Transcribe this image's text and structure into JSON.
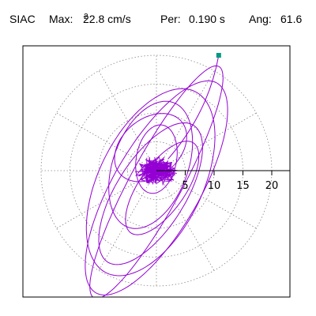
{
  "header": {
    "station": "SIAC",
    "max_label": "Max:",
    "max_value": "22.8",
    "max_unit": "cm/s",
    "max_unit_sup": "2",
    "period_label": "Per:",
    "period_value": "0.190 s",
    "angle_label": "Ang:",
    "angle_value": "61.6"
  },
  "chart_data": {
    "type": "line",
    "title": "SIAC  Max: 22.8 cm/s² Per: 0.190 s  Ang: 61.6",
    "x_ticks": [
      "5",
      "10",
      "15",
      "20"
    ],
    "x_tick_values": [
      5,
      10,
      15,
      20
    ],
    "range": [
      -25,
      25
    ],
    "polar_grid_rings": [
      5,
      10,
      15,
      20
    ],
    "polar_grid_spokes_deg": [
      0,
      30,
      60,
      90,
      120,
      150,
      180,
      210,
      240,
      270,
      300,
      330
    ],
    "grid": "dotted polar",
    "trace_color": "#9400d3",
    "marker_color": "#009a82",
    "max_point": {
      "x": 10.8,
      "y": 20.0
    },
    "series": [
      {
        "loops": [
          {
            "a": 22.8,
            "b": 4.5,
            "angle": 61.6,
            "cx": 0,
            "cy": -2
          },
          {
            "a": 21.0,
            "b": 7.5,
            "angle": 60.0,
            "cx": 0,
            "cy": -3
          },
          {
            "a": 17.5,
            "b": 9.0,
            "angle": 64.0,
            "cx": -1,
            "cy": -2
          },
          {
            "a": 14.0,
            "b": 6.0,
            "angle": 58.0,
            "cx": -1,
            "cy": -4
          },
          {
            "a": 11.5,
            "b": 6.5,
            "angle": 70.0,
            "cx": -1,
            "cy": 1
          },
          {
            "a": 9.5,
            "b": 4.0,
            "angle": 55.0,
            "cx": 1,
            "cy": -3
          },
          {
            "a": 7.0,
            "b": 5.0,
            "angle": 40.0,
            "cx": -1,
            "cy": 4
          },
          {
            "a": 6.0,
            "b": 3.5,
            "angle": 80.0,
            "cx": 0,
            "cy": 2
          }
        ]
      }
    ]
  }
}
